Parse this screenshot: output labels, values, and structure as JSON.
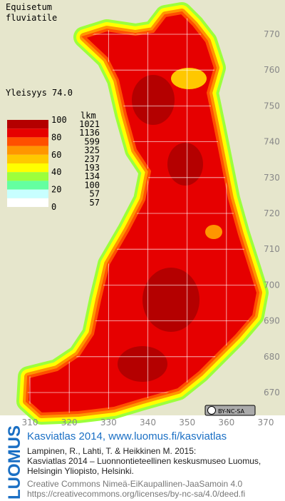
{
  "title": [
    "Equisetum",
    "fluviatile"
  ],
  "frequency_label": "Yleisyys 74.0",
  "legend": {
    "scale": [
      100,
      80,
      60,
      40,
      20,
      0
    ],
    "count_header": "lkm",
    "counts": [
      1021,
      1136,
      599,
      325,
      237,
      193,
      134,
      100,
      57,
      57
    ],
    "colors": [
      "#b40000",
      "#e60000",
      "#ff5000",
      "#ff9600",
      "#ffc800",
      "#ffff00",
      "#9cff3c",
      "#64ffa0",
      "#c8ffff",
      "#ffffff"
    ]
  },
  "grid": {
    "x_labels": [
      310,
      320,
      330,
      340,
      350,
      360,
      370
    ],
    "y_labels": [
      770,
      760,
      750,
      740,
      730,
      720,
      710,
      700,
      690,
      680,
      670
    ]
  },
  "license_badge": "BY-NC-SA",
  "footer": {
    "brand": "LUOMUS",
    "link": "Kasviatlas 2014, www.luomus.fi/kasviatlas",
    "citation": [
      "Lampinen, R., Lahti, T. & Heikkinen M. 2015:",
      "Kasviatlas 2014 – Luonnontieteellinen keskusmuseo Luomus,",
      "Helsingin Yliopisto, Helsinki."
    ],
    "license": [
      "Creative Commons Nimeä-EiKaupallinen-JaaSamoin 4.0",
      "https://creativecommons.org/licenses/by-nc-sa/4.0/deed.fi"
    ]
  }
}
